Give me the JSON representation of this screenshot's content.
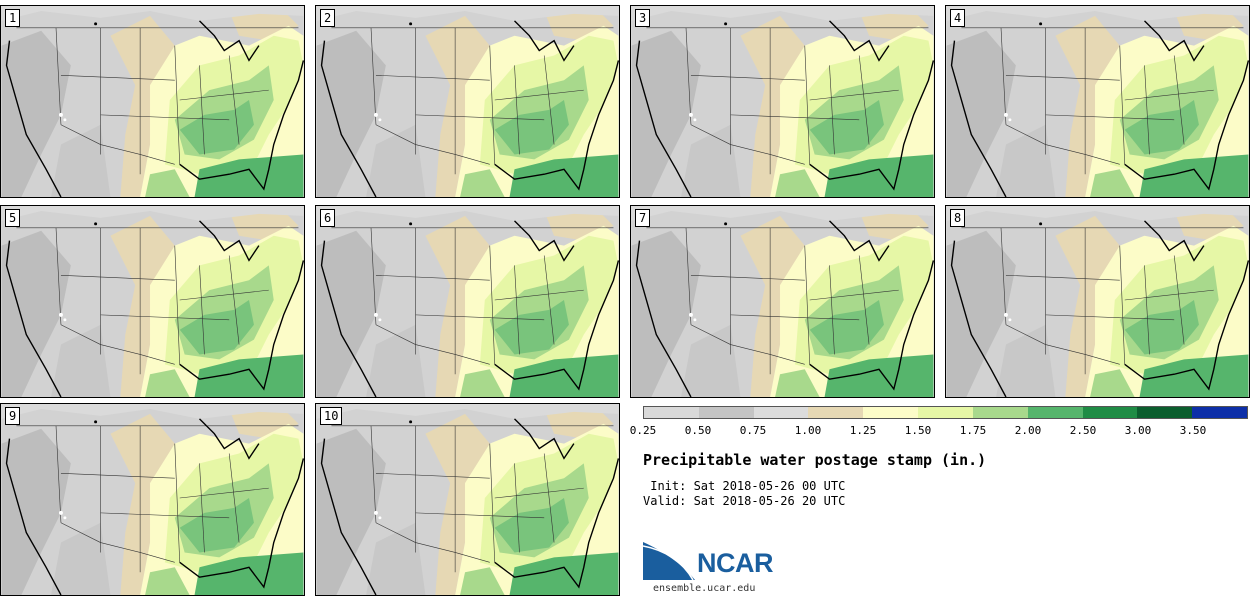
{
  "panels": [
    {
      "label": "1"
    },
    {
      "label": "2"
    },
    {
      "label": "3"
    },
    {
      "label": "4"
    },
    {
      "label": "5"
    },
    {
      "label": "6"
    },
    {
      "label": "7"
    },
    {
      "label": "8"
    },
    {
      "label": "9"
    },
    {
      "label": "10"
    }
  ],
  "colorbar": {
    "colors": [
      "#d9d9d9",
      "#c4c4c4",
      "#dcdcdc",
      "#e6d8b4",
      "#fcfcc8",
      "#e6f7a6",
      "#a8d98c",
      "#56b56c",
      "#1f8c45",
      "#0b5e2e",
      "#0d2fa8"
    ],
    "ticks": [
      "0.25",
      "0.50",
      "0.75",
      "1.00",
      "1.25",
      "1.50",
      "1.75",
      "2.00",
      "2.50",
      "3.00",
      "3.50"
    ]
  },
  "title": "Precipitable water postage stamp (in.)",
  "init": " Init: Sat 2018-05-26 00 UTC",
  "valid": "Valid: Sat 2018-05-26 20 UTC",
  "logo": {
    "text": "NCAR",
    "url": "ensemble.ucar.edu"
  }
}
